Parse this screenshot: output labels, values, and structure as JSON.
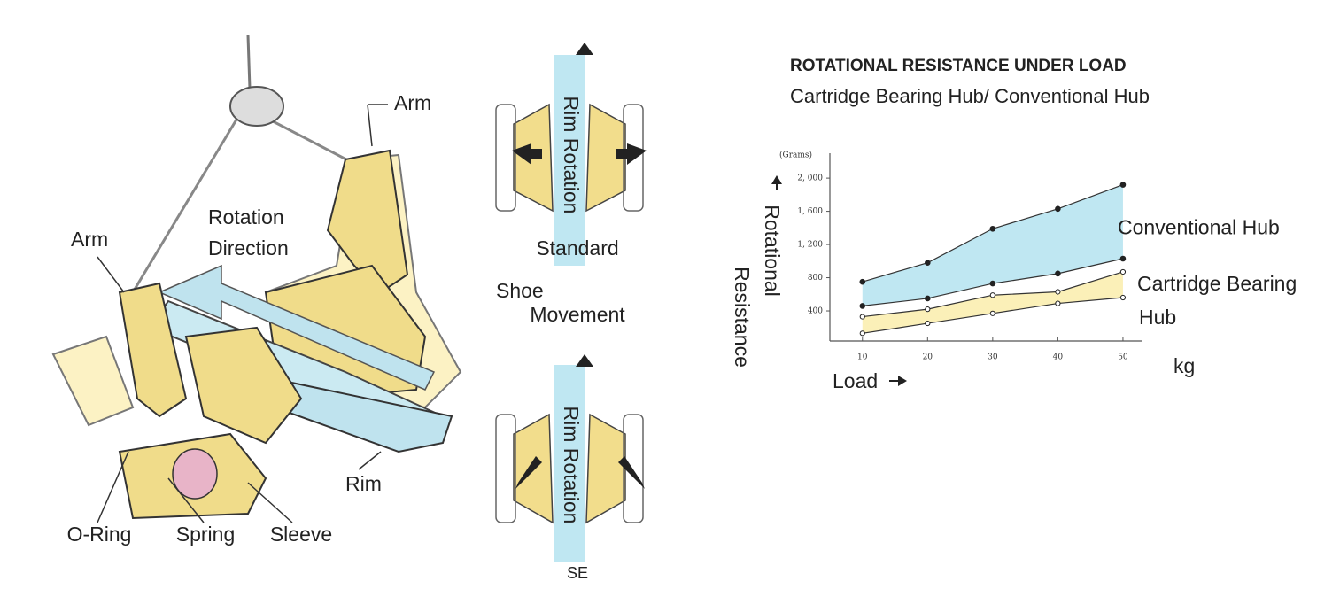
{
  "illustration": {
    "arm_top": "Arm",
    "arm_left": "Arm",
    "rotation_direction": [
      "Rotation",
      "Direction"
    ],
    "rim": "Rim",
    "o_ring": "O-Ring",
    "spring": "Spring",
    "sleeve": "Sleeve"
  },
  "shoe_diagram": {
    "rim_rotation_top": "Rim Rotation",
    "standard": "Standard",
    "shoe_movement": [
      "Shoe",
      "Movement"
    ],
    "rim_rotation_bottom": "Rim Rotation",
    "se": "SE"
  },
  "chart_data": {
    "type": "range-area",
    "title": "ROTATIONAL RESISTANCE UNDER LOAD",
    "subtitle": "Cartridge Bearing Hub/ Conventional Hub",
    "y_unit": "(Grams)",
    "y_label": [
      "Rotational",
      "Resistance"
    ],
    "x_label": "Load",
    "x_unit": "kg",
    "x": [
      10,
      20,
      30,
      40,
      50
    ],
    "xlim": [
      5,
      53
    ],
    "xticks": [
      10,
      20,
      30,
      40,
      50
    ],
    "ylim": [
      0,
      2300
    ],
    "yticks": [
      400,
      800,
      {
        "value": 1200,
        "label": "1, 200"
      },
      {
        "value": 1600,
        "label": "1, 600"
      },
      {
        "value": 2000,
        "label": "2, 000"
      }
    ],
    "grid": false,
    "bands": [
      {
        "label_lines": [
          "Conventional Hub"
        ],
        "color": "#bfe7f2",
        "upper": [
          750,
          980,
          1390,
          1630,
          1920
        ],
        "lower": [
          460,
          550,
          730,
          850,
          1030
        ],
        "upper_marker": "filled",
        "lower_marker": "filled"
      },
      {
        "label_lines": [
          "Cartridge Bearing",
          "Hub"
        ],
        "color": "#fbf0b8",
        "upper": [
          330,
          420,
          590,
          630,
          870
        ],
        "lower": [
          130,
          250,
          370,
          490,
          560
        ],
        "upper_marker": "open",
        "lower_marker": "open"
      }
    ]
  }
}
